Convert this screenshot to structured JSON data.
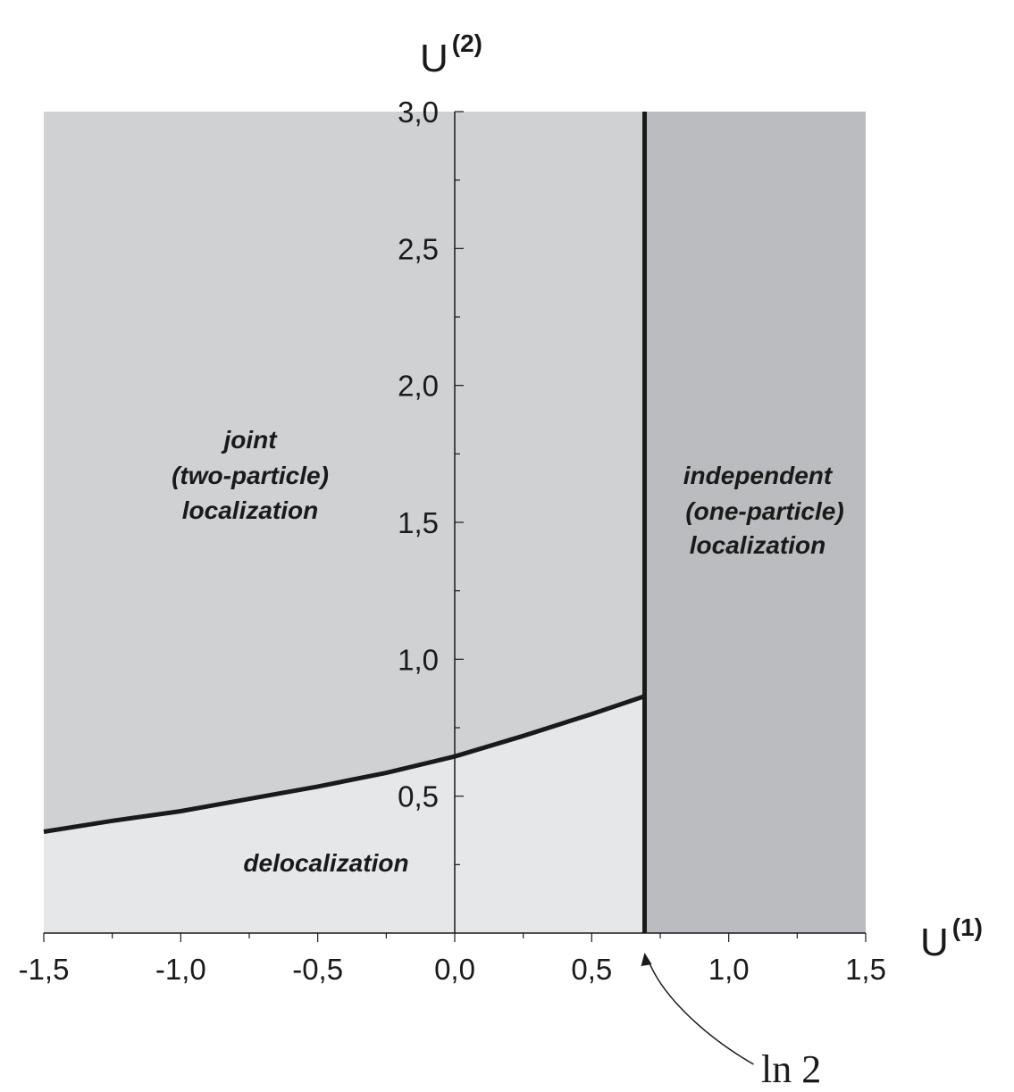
{
  "chart_data": {
    "type": "area",
    "xlabel": "U",
    "xlabel_sup": "(1)",
    "ylabel": "U",
    "ylabel_sup": "(2)",
    "xlim": [
      -1.5,
      1.5
    ],
    "ylim": [
      0,
      3.0
    ],
    "x_ticks": [
      -1.5,
      -1.0,
      -0.5,
      0.0,
      0.5,
      1.0,
      1.5
    ],
    "x_tick_labels": [
      "-1,5",
      "-1,0",
      "-0,5",
      "0,0",
      "0,5",
      "1,0",
      "1,5"
    ],
    "y_ticks": [
      0.5,
      1.0,
      1.5,
      2.0,
      2.5,
      3.0
    ],
    "y_tick_labels": [
      "0,5",
      "1,0",
      "1,5",
      "2,0",
      "2,5",
      "3,0"
    ],
    "grid": false,
    "boundary_curve": {
      "x": [
        -1.5,
        -1.25,
        -1.0,
        -0.75,
        -0.5,
        -0.25,
        0.0,
        0.25,
        0.5,
        0.693
      ],
      "y": [
        0.37,
        0.41,
        0.445,
        0.49,
        0.535,
        0.585,
        0.645,
        0.72,
        0.8,
        0.865
      ]
    },
    "vertical_boundary_x": 0.693,
    "regions": [
      {
        "lines": [
          "joint",
          "(two-particle)",
          "localization"
        ],
        "color": "#d0d1d3"
      },
      {
        "lines": [
          "independent",
          "(one-particle)",
          "localization"
        ],
        "color": "#bbbcbf"
      },
      {
        "lines": [
          "delocalization"
        ],
        "color": "#e6e7e8"
      }
    ],
    "annotation": {
      "text": "ln 2",
      "x": 0.693
    }
  }
}
